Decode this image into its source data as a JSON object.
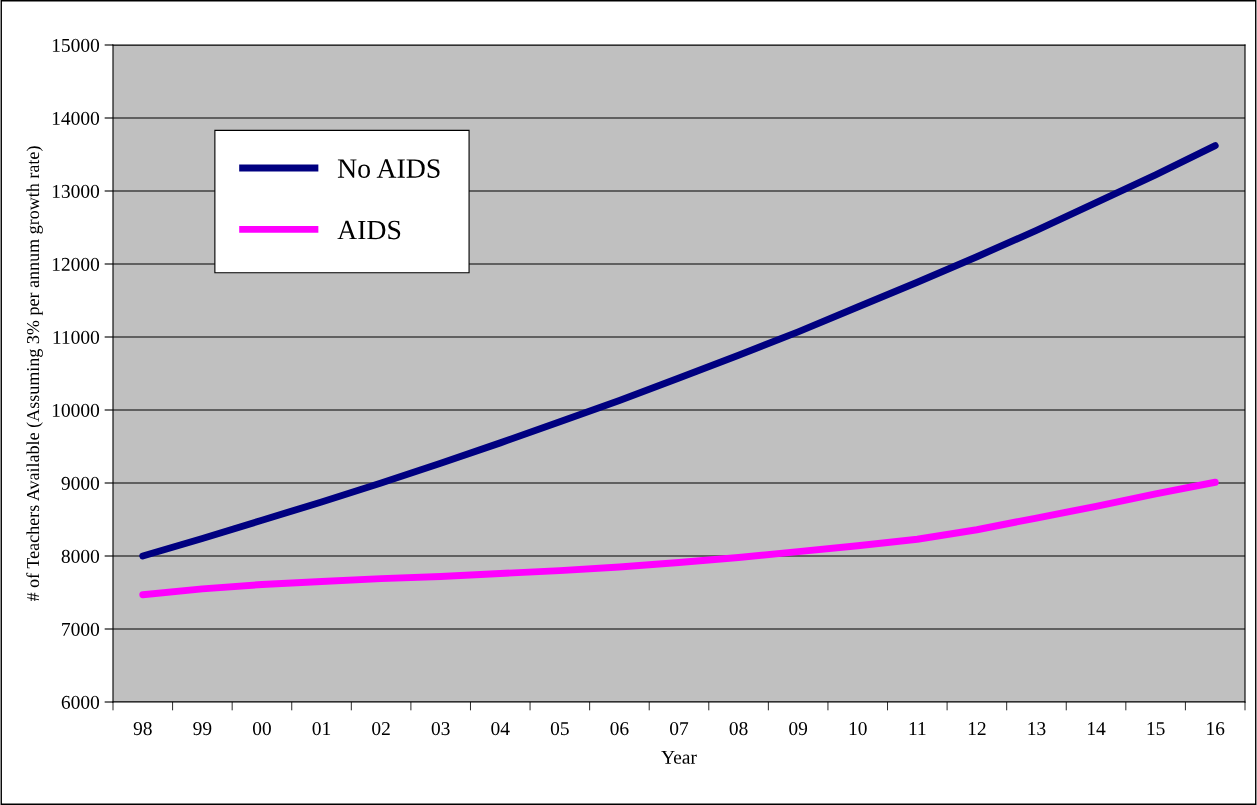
{
  "chart_data": {
    "type": "line",
    "xlabel": "Year",
    "ylabel": "# of Teachers Available (Assuming 3% per annum growth rate)",
    "categories": [
      "98",
      "99",
      "00",
      "01",
      "02",
      "03",
      "04",
      "05",
      "06",
      "07",
      "08",
      "09",
      "10",
      "11",
      "12",
      "13",
      "14",
      "15",
      "16"
    ],
    "series": [
      {
        "name": "No AIDS",
        "color": "#000080",
        "values": [
          8000,
          8240,
          8490,
          8740,
          9000,
          9270,
          9550,
          9840,
          10130,
          10440,
          10750,
          11070,
          11410,
          11750,
          12100,
          12460,
          12840,
          13220,
          13620
        ]
      },
      {
        "name": "AIDS",
        "color": "#ff00ff",
        "values": [
          7470,
          7550,
          7610,
          7650,
          7690,
          7720,
          7760,
          7800,
          7850,
          7910,
          7980,
          8060,
          8140,
          8230,
          8360,
          8520,
          8680,
          8850,
          9010
        ]
      }
    ],
    "ylim": [
      6000,
      15000
    ],
    "yticks": [
      6000,
      7000,
      8000,
      9000,
      10000,
      11000,
      12000,
      13000,
      14000,
      15000
    ],
    "grid": "y",
    "legend": "top left",
    "marker": "none",
    "line_style": "solid"
  }
}
